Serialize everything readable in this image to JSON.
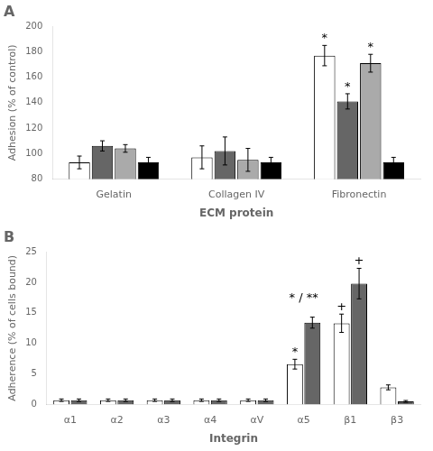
{
  "chart_data": [
    {
      "type": "bar",
      "title": "A",
      "x_label": "ECM protein",
      "y_label": "Adhesion (% of control)",
      "categories": [
        "Gelatin",
        "Collagen IV",
        "Fibronectin"
      ],
      "series": [
        {
          "color": "white",
          "values": [
            93,
            97,
            177
          ],
          "errors": [
            5,
            9,
            8
          ]
        },
        {
          "color": "#666666",
          "values": [
            106,
            102,
            141
          ],
          "errors": [
            4,
            11,
            6
          ]
        },
        {
          "color": "#aaaaaa",
          "values": [
            104,
            95,
            171
          ],
          "errors": [
            3,
            9,
            7
          ]
        },
        {
          "color": "black",
          "values": [
            93,
            93,
            93
          ],
          "errors": [
            4,
            4,
            4
          ]
        }
      ],
      "annotations": [
        {
          "text": "*",
          "x": "Fibronectin",
          "series": 0
        },
        {
          "text": "*",
          "x": "Fibronectin",
          "series": 1
        },
        {
          "text": "*",
          "x": "Fibronectin",
          "series": 2
        }
      ],
      "ylim": [
        80,
        200
      ],
      "yticks": [
        80,
        100,
        120,
        140,
        160,
        180,
        200
      ],
      "grid": false
    },
    {
      "type": "bar",
      "title": "B",
      "x_label": "Integrin",
      "y_label": "Adherence (% of cells bound)",
      "categories": [
        "α1",
        "α2",
        "α3",
        "α4",
        "αV",
        "α5",
        "β1",
        "β3"
      ],
      "series": [
        {
          "color": "white",
          "values": [
            0.7,
            0.7,
            0.7,
            0.7,
            0.7,
            6.6,
            13.3,
            2.8
          ],
          "errors": [
            0.2,
            0.2,
            0.2,
            0.2,
            0.2,
            0.8,
            1.5,
            0.4
          ]
        },
        {
          "color": "#666666",
          "values": [
            0.7,
            0.7,
            0.7,
            0.7,
            0.7,
            13.4,
            19.8,
            0.5
          ],
          "errors": [
            0.2,
            0.2,
            0.2,
            0.2,
            0.2,
            0.9,
            2.5,
            0.15
          ]
        }
      ],
      "annotations": [
        {
          "text": "*",
          "x": "α5",
          "series": 0
        },
        {
          "text": "* / **",
          "x": "α5"
        },
        {
          "text": "+",
          "x": "β1",
          "series": 0
        },
        {
          "text": "+",
          "x": "β1",
          "series": 1
        }
      ],
      "ylim": [
        0,
        25
      ],
      "yticks": [
        0,
        5,
        10,
        15,
        20,
        25
      ],
      "grid": false
    }
  ]
}
